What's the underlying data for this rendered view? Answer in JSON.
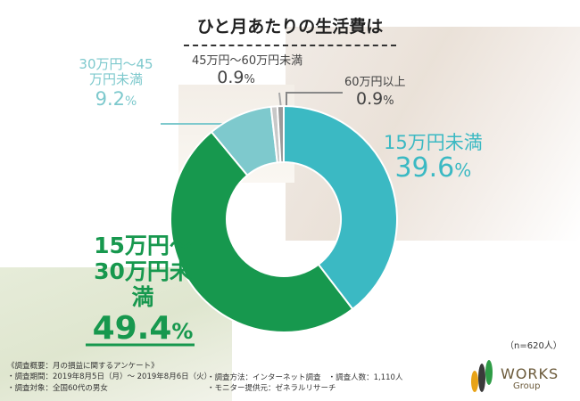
{
  "chart_data": {
    "type": "pie",
    "title": "ひと月あたりの生活費は",
    "sample": "（n=620人）",
    "slices": [
      {
        "label": "15万円未満",
        "value": 39.6,
        "display": "39.6",
        "color": "#3bb9c3"
      },
      {
        "label": "15万円～30万円未満",
        "value": 49.4,
        "display": "49.4",
        "color": "#17984e"
      },
      {
        "label": "30万円～45万円未満",
        "value": 9.2,
        "display": "9.2",
        "color": "#7ec9cd"
      },
      {
        "label": "45万円～60万円未満",
        "value": 0.9,
        "display": "0.9",
        "color": "#c8c8c8"
      },
      {
        "label": "60万円以上",
        "value": 0.9,
        "display": "0.9",
        "color": "#9a9a9a"
      }
    ]
  },
  "labels": {
    "s0": "15万円未満",
    "s1a": "15万円～",
    "s1b": "30万円未満",
    "s2a": "30万円～",
    "s2b": "45万円未満",
    "s3": "45万円～60万円未満",
    "s4": "60万円以上",
    "pct": "%"
  },
  "notes": {
    "overview": "《調査概要：月の損益に関するアンケート》",
    "period": "・調査期間：2019年8月5日（月）～ 2019年8月6日（火）",
    "method": "・調査方法：インターネット調査",
    "count": "・調査人数：1,110人",
    "target": "・調査対象：全国60代の男女",
    "provider": "・モニター提供元：ゼネラルリサーチ"
  },
  "logo": {
    "name": "WORKS",
    "sub": "Group"
  }
}
